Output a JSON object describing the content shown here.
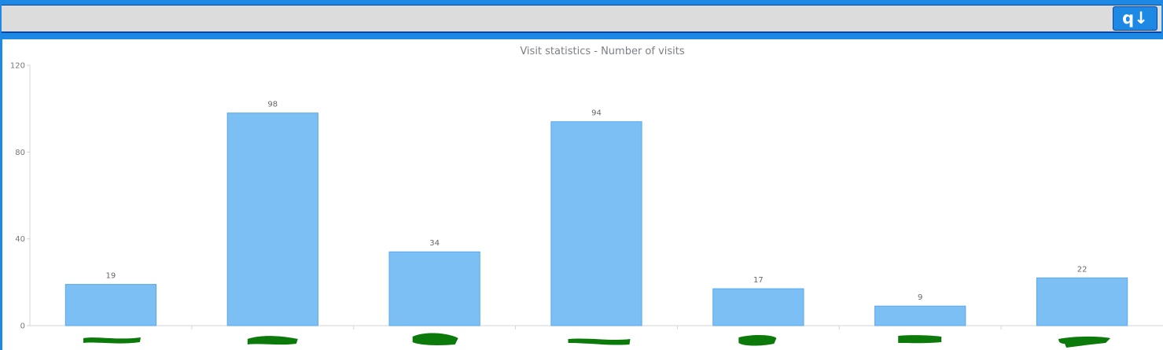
{
  "toolbar": {
    "button_label": "q↓"
  },
  "colors": {
    "bar_fill": "#7bbff5",
    "bar_stroke": "#5aa9ee",
    "redaction": "#0b7a0b"
  },
  "chart_data": {
    "type": "bar",
    "title": "Visit statistics - Number of visits",
    "xlabel": "",
    "ylabel": "",
    "categories": [
      "",
      "",
      "",
      "",
      "",
      "",
      ""
    ],
    "categories_redacted": true,
    "values": [
      19,
      98,
      34,
      94,
      17,
      9,
      22
    ],
    "ylim": [
      0,
      120
    ],
    "yticks": [
      0,
      40,
      80,
      120
    ],
    "show_value_labels": true,
    "grid": false,
    "legend": "none"
  }
}
